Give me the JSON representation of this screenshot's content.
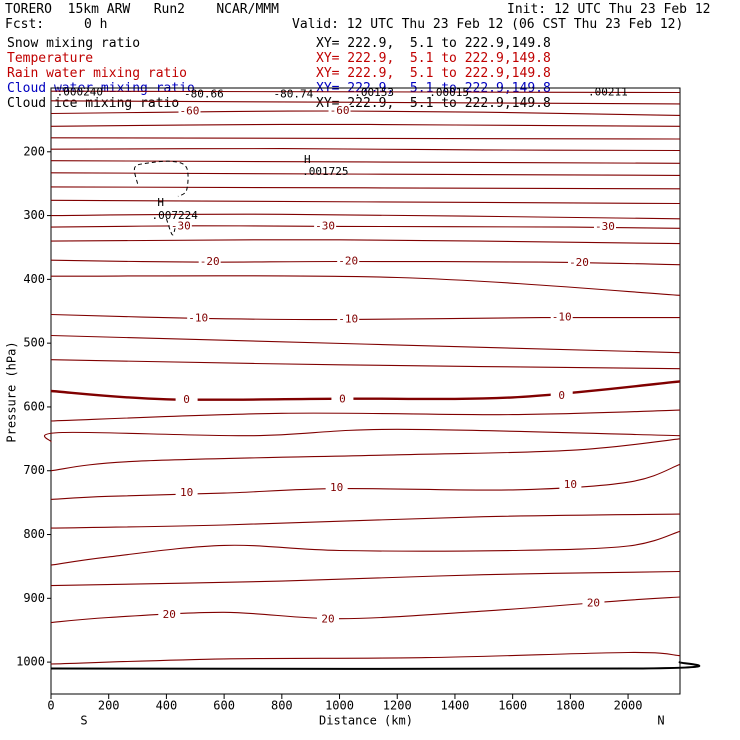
{
  "header": {
    "model": "TORERO  15km ARW   Run2    NCAR/MMM",
    "init": "Init: 12 UTC Thu 23 Feb 12",
    "fcst_label": "Fcst:",
    "fcst_value": "0 h",
    "valid": "Valid: 12 UTC Thu 23 Feb 12 (06 CST Thu 23 Feb 12)"
  },
  "legend": [
    {
      "name": "Snow mixing ratio",
      "color": "#000000",
      "xy": "XY= 222.9,  5.1 to 222.9,149.8",
      "xy_color": "#000000"
    },
    {
      "name": "Temperature",
      "color": "#c00000",
      "xy": "XY= 222.9,  5.1 to 222.9,149.8",
      "xy_color": "#c00000"
    },
    {
      "name": "Rain water mixing ratio",
      "color": "#c00000",
      "xy": "XY= 222.9,  5.1 to 222.9,149.8",
      "xy_color": "#c00000"
    },
    {
      "name": "Cloud water mixing ratio",
      "color": "#0000c0",
      "xy": "XY= 222.9,  5.1 to 222.9,149.8",
      "xy_color": "#0000c0"
    },
    {
      "name": "Cloud ice mixing ratio",
      "color": "#000000",
      "xy": "XY= 222.9,  5.1 to 222.9,149.8",
      "xy_color": "#000000"
    }
  ],
  "chart_data": {
    "type": "contour",
    "xlabel": "Distance (km)",
    "ylabel": "Pressure (hPa)",
    "xlim": [
      0,
      2180
    ],
    "ylim": [
      1050,
      100
    ],
    "x_ticks": [
      0,
      200,
      400,
      600,
      800,
      1000,
      1200,
      1400,
      1600,
      1800,
      2000
    ],
    "y_ticks": [
      200,
      300,
      400,
      500,
      600,
      700,
      800,
      900,
      1000
    ],
    "x_endpoints": {
      "left": "S",
      "right": "N"
    },
    "contour_color": "#800000",
    "temperature_contours": [
      {
        "points": [
          [
            0,
            105
          ],
          [
            2180,
            107
          ]
        ]
      },
      {
        "points": [
          [
            0,
            120
          ],
          [
            2180,
            125
          ]
        ]
      },
      {
        "points": [
          [
            0,
            140
          ],
          [
            600,
            137
          ],
          [
            1000,
            136
          ],
          [
            1500,
            138
          ],
          [
            2180,
            143
          ]
        ],
        "label": "-60",
        "label_at": [
          [
            480,
            137
          ],
          [
            1000,
            136
          ]
        ]
      },
      {
        "points": [
          [
            0,
            160
          ],
          [
            800,
            157
          ],
          [
            1400,
            158
          ],
          [
            2180,
            160
          ]
        ]
      },
      {
        "points": [
          [
            0,
            178
          ],
          [
            2180,
            180
          ]
        ]
      },
      {
        "points": [
          [
            0,
            196
          ],
          [
            800,
            195
          ],
          [
            1500,
            197
          ],
          [
            2180,
            198
          ]
        ]
      },
      {
        "points": [
          [
            0,
            214
          ],
          [
            2180,
            218
          ]
        ]
      },
      {
        "points": [
          [
            0,
            233
          ],
          [
            2180,
            237
          ]
        ]
      },
      {
        "points": [
          [
            0,
            255
          ],
          [
            2180,
            258
          ]
        ]
      },
      {
        "points": [
          [
            0,
            276
          ],
          [
            2180,
            281
          ]
        ]
      },
      {
        "points": [
          [
            0,
            300
          ],
          [
            800,
            298
          ],
          [
            2180,
            305
          ]
        ]
      },
      {
        "points": [
          [
            0,
            318
          ],
          [
            500,
            316
          ],
          [
            1000,
            317
          ],
          [
            1800,
            318
          ],
          [
            2180,
            320
          ]
        ],
        "label": "-30",
        "label_at": [
          [
            450,
            317
          ],
          [
            950,
            317
          ],
          [
            1920,
            318
          ]
        ]
      },
      {
        "points": [
          [
            0,
            340
          ],
          [
            1000,
            338
          ],
          [
            2180,
            344
          ]
        ]
      },
      {
        "points": [
          [
            0,
            370
          ],
          [
            500,
            373
          ],
          [
            1000,
            372
          ],
          [
            1700,
            373
          ],
          [
            2180,
            377
          ]
        ],
        "label": "-20",
        "label_at": [
          [
            550,
            373
          ],
          [
            1030,
            372
          ],
          [
            1830,
            374
          ]
        ]
      },
      {
        "points": [
          [
            0,
            395
          ],
          [
            1200,
            397
          ],
          [
            2180,
            425
          ]
        ]
      },
      {
        "points": [
          [
            0,
            455
          ],
          [
            500,
            461
          ],
          [
            1000,
            463
          ],
          [
            1700,
            460
          ],
          [
            2180,
            460
          ]
        ],
        "label": "-10",
        "label_at": [
          [
            510,
            461
          ],
          [
            1030,
            463
          ],
          [
            1770,
            460
          ]
        ]
      },
      {
        "points": [
          [
            0,
            488
          ],
          [
            2180,
            515
          ]
        ]
      },
      {
        "points": [
          [
            0,
            526
          ],
          [
            1000,
            534
          ],
          [
            2180,
            540
          ]
        ]
      },
      {
        "points": [
          [
            0,
            575
          ],
          [
            400,
            588
          ],
          [
            1000,
            587
          ],
          [
            1600,
            585
          ],
          [
            2180,
            560
          ]
        ],
        "label": "0",
        "label_at": [
          [
            470,
            589
          ],
          [
            1010,
            588
          ],
          [
            1770,
            583
          ]
        ],
        "bold": true
      },
      {
        "points": [
          [
            0,
            622
          ],
          [
            800,
            610
          ],
          [
            1600,
            612
          ],
          [
            2180,
            605
          ]
        ]
      },
      {
        "points": [
          [
            0,
            655
          ],
          [
            40,
            640
          ],
          [
            700,
            645
          ],
          [
            1200,
            635
          ],
          [
            2180,
            645
          ]
        ]
      },
      {
        "points": [
          [
            0,
            700
          ],
          [
            300,
            685
          ],
          [
            1200,
            675
          ],
          [
            1800,
            668
          ],
          [
            2180,
            650
          ]
        ]
      },
      {
        "points": [
          [
            0,
            745
          ],
          [
            200,
            740
          ],
          [
            600,
            735
          ],
          [
            1000,
            728
          ],
          [
            1600,
            730
          ],
          [
            2000,
            718
          ],
          [
            2180,
            690
          ]
        ],
        "label": "10",
        "label_at": [
          [
            470,
            735
          ],
          [
            990,
            727
          ],
          [
            1800,
            722
          ]
        ]
      },
      {
        "points": [
          [
            0,
            790
          ],
          [
            600,
            785
          ],
          [
            1500,
            772
          ],
          [
            2180,
            768
          ]
        ]
      },
      {
        "points": [
          [
            0,
            848
          ],
          [
            200,
            835
          ],
          [
            600,
            817
          ],
          [
            1000,
            825
          ],
          [
            1600,
            825
          ],
          [
            2000,
            818
          ],
          [
            2180,
            795
          ]
        ]
      },
      {
        "points": [
          [
            0,
            880
          ],
          [
            800,
            873
          ],
          [
            1500,
            863
          ],
          [
            2180,
            858
          ]
        ]
      },
      {
        "points": [
          [
            0,
            938
          ],
          [
            200,
            930
          ],
          [
            600,
            922
          ],
          [
            1000,
            932
          ],
          [
            1500,
            920
          ],
          [
            2000,
            903
          ],
          [
            2180,
            898
          ]
        ],
        "label": "20",
        "label_at": [
          [
            410,
            926
          ],
          [
            960,
            933
          ],
          [
            1880,
            908
          ]
        ]
      },
      {
        "points": [
          [
            0,
            1003
          ],
          [
            600,
            995
          ],
          [
            1300,
            993
          ],
          [
            2000,
            985
          ],
          [
            2180,
            990
          ]
        ]
      },
      {
        "points": [
          [
            0,
            1010
          ],
          [
            2050,
            1010
          ],
          [
            2180,
            1000
          ]
        ],
        "surface": true
      }
    ],
    "snow_mixing_ratio": {
      "style": "dashed",
      "color": "#000000",
      "max_label": "H",
      "max_value": ".007224",
      "max_at": [
        380,
        290
      ]
    },
    "maxima": [
      {
        "label": "H",
        "value": ".001725",
        "at": [
          930,
          232
        ]
      }
    ],
    "top_labels": [
      {
        "text": ".000240",
        "at": [
          100,
          107
        ]
      },
      {
        "text": "-80.66",
        "at": [
          530,
          110
        ]
      },
      {
        "text": "-80.74",
        "at": [
          840,
          110
        ]
      },
      {
        "text": ".00153",
        "at": [
          1120,
          108
        ]
      },
      {
        "text": ".00015",
        "at": [
          1380,
          108
        ]
      },
      {
        "text": ".00211",
        "at": [
          1930,
          107
        ]
      }
    ]
  }
}
